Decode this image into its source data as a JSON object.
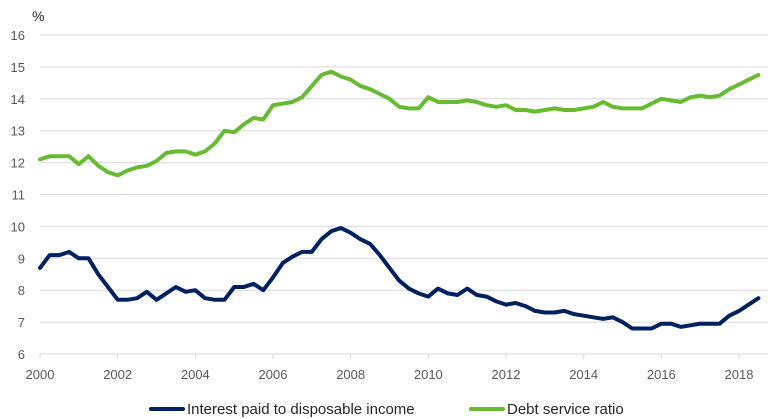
{
  "chart_data": {
    "type": "line",
    "title": "",
    "unit_label": "%",
    "xlabel": "",
    "ylabel": "%",
    "xlim": [
      2000,
      2018.5
    ],
    "ylim": [
      6,
      16
    ],
    "y_ticks": [
      6,
      7,
      8,
      9,
      10,
      11,
      12,
      13,
      14,
      15,
      16
    ],
    "x_ticks": [
      2000,
      2002,
      2004,
      2006,
      2008,
      2010,
      2012,
      2014,
      2016,
      2018
    ],
    "grid": "horizontal",
    "legend_position": "bottom",
    "frequency": "quarterly",
    "x_start": 2000,
    "x_step": 0.25,
    "series": [
      {
        "name": "Interest paid to disposable income",
        "color": "#002060",
        "values": [
          8.7,
          9.1,
          9.1,
          9.2,
          9.0,
          9.0,
          8.5,
          8.1,
          7.7,
          7.7,
          7.75,
          7.95,
          7.7,
          7.9,
          8.1,
          7.95,
          8.0,
          7.75,
          7.7,
          7.7,
          8.1,
          8.1,
          8.2,
          8.0,
          8.4,
          8.85,
          9.05,
          9.2,
          9.2,
          9.6,
          9.85,
          9.95,
          9.8,
          9.6,
          9.45,
          9.1,
          8.7,
          8.3,
          8.05,
          7.9,
          7.8,
          8.05,
          7.9,
          7.85,
          8.05,
          7.85,
          7.8,
          7.65,
          7.55,
          7.6,
          7.5,
          7.35,
          7.3,
          7.3,
          7.35,
          7.25,
          7.2,
          7.15,
          7.1,
          7.15,
          7.0,
          6.8,
          6.8,
          6.8,
          6.95,
          6.95,
          6.85,
          6.9,
          6.95,
          6.95,
          6.95,
          7.2,
          7.35,
          7.55,
          7.75
        ]
      },
      {
        "name": "Debt service ratio",
        "color": "#66BB33",
        "values": [
          12.1,
          12.2,
          12.2,
          12.2,
          11.95,
          12.2,
          11.9,
          11.7,
          11.6,
          11.75,
          11.85,
          11.9,
          12.05,
          12.3,
          12.35,
          12.35,
          12.25,
          12.35,
          12.6,
          13.0,
          12.95,
          13.2,
          13.4,
          13.35,
          13.8,
          13.85,
          13.9,
          14.05,
          14.4,
          14.75,
          14.85,
          14.7,
          14.6,
          14.4,
          14.3,
          14.15,
          14.0,
          13.75,
          13.7,
          13.7,
          14.05,
          13.9,
          13.9,
          13.9,
          13.95,
          13.9,
          13.8,
          13.75,
          13.8,
          13.65,
          13.65,
          13.6,
          13.65,
          13.7,
          13.65,
          13.65,
          13.7,
          13.75,
          13.9,
          13.75,
          13.7,
          13.7,
          13.7,
          13.85,
          14.0,
          13.95,
          13.9,
          14.05,
          14.1,
          14.05,
          14.1,
          14.3,
          14.45,
          14.6,
          14.75
        ]
      }
    ]
  }
}
